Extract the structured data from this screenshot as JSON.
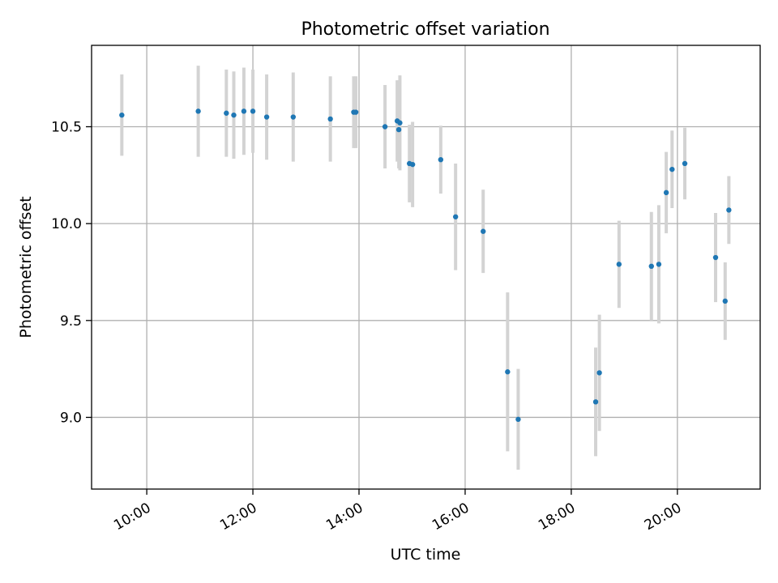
{
  "chart_data": {
    "type": "scatter",
    "title": "Photometric offset variation",
    "xlabel": "UTC time",
    "ylabel": "Photometric offset",
    "x_unit": "hours",
    "xlim": [
      8.96,
      21.56
    ],
    "ylim": [
      8.63,
      10.92
    ],
    "x_ticks": [
      {
        "value": 10,
        "label": "10:00"
      },
      {
        "value": 12,
        "label": "12:00"
      },
      {
        "value": 14,
        "label": "14:00"
      },
      {
        "value": 16,
        "label": "16:00"
      },
      {
        "value": 18,
        "label": "18:00"
      },
      {
        "value": 20,
        "label": "20:00"
      }
    ],
    "y_ticks": [
      {
        "value": 9.0,
        "label": "9.0"
      },
      {
        "value": 9.5,
        "label": "9.5"
      },
      {
        "value": 10.0,
        "label": "10.0"
      },
      {
        "value": 10.5,
        "label": "10.5"
      }
    ],
    "grid": true,
    "point_color": "#1f77b4",
    "errorbar_color": "#d3d3d3",
    "points": [
      {
        "x": 9.53,
        "y": 10.56,
        "err": 0.21
      },
      {
        "x": 10.97,
        "y": 10.58,
        "err": 0.235
      },
      {
        "x": 11.5,
        "y": 10.57,
        "err": 0.225
      },
      {
        "x": 11.64,
        "y": 10.56,
        "err": 0.225
      },
      {
        "x": 11.83,
        "y": 10.58,
        "err": 0.225
      },
      {
        "x": 12.0,
        "y": 10.58,
        "err": 0.215
      },
      {
        "x": 12.26,
        "y": 10.55,
        "err": 0.22
      },
      {
        "x": 12.76,
        "y": 10.55,
        "err": 0.23
      },
      {
        "x": 13.46,
        "y": 10.54,
        "err": 0.22
      },
      {
        "x": 13.9,
        "y": 10.575,
        "err": 0.185
      },
      {
        "x": 13.94,
        "y": 10.575,
        "err": 0.185
      },
      {
        "x": 14.49,
        "y": 10.5,
        "err": 0.215
      },
      {
        "x": 14.72,
        "y": 10.53,
        "err": 0.21
      },
      {
        "x": 14.77,
        "y": 10.52,
        "err": 0.245
      },
      {
        "x": 14.75,
        "y": 10.485,
        "err": 0.2
      },
      {
        "x": 14.95,
        "y": 10.31,
        "err": 0.2
      },
      {
        "x": 15.01,
        "y": 10.305,
        "err": 0.22
      },
      {
        "x": 15.54,
        "y": 10.33,
        "err": 0.175
      },
      {
        "x": 15.82,
        "y": 10.035,
        "err": 0.275
      },
      {
        "x": 16.34,
        "y": 9.96,
        "err": 0.215
      },
      {
        "x": 16.8,
        "y": 9.235,
        "err": 0.41
      },
      {
        "x": 17.0,
        "y": 8.99,
        "err": 0.26
      },
      {
        "x": 18.46,
        "y": 9.08,
        "err": 0.28
      },
      {
        "x": 18.53,
        "y": 9.23,
        "err": 0.3
      },
      {
        "x": 18.9,
        "y": 9.79,
        "err": 0.225
      },
      {
        "x": 19.51,
        "y": 9.78,
        "err": 0.28
      },
      {
        "x": 19.65,
        "y": 9.79,
        "err": 0.305
      },
      {
        "x": 19.79,
        "y": 10.16,
        "err": 0.21
      },
      {
        "x": 19.9,
        "y": 10.28,
        "err": 0.2
      },
      {
        "x": 20.14,
        "y": 10.31,
        "err": 0.185
      },
      {
        "x": 20.72,
        "y": 9.825,
        "err": 0.23
      },
      {
        "x": 20.9,
        "y": 9.6,
        "err": 0.2
      },
      {
        "x": 20.97,
        "y": 10.07,
        "err": 0.175
      }
    ]
  }
}
